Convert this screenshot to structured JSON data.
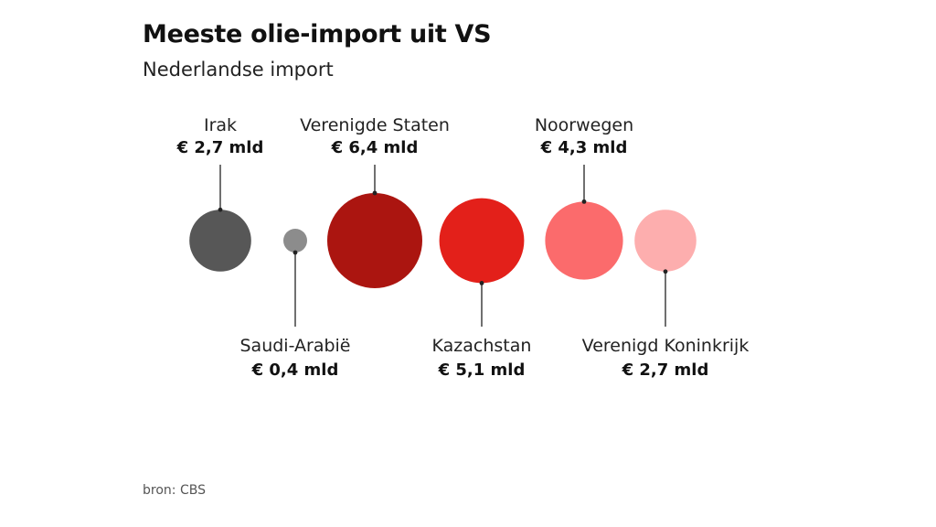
{
  "header": {
    "title": "Meeste olie-import uit VS",
    "subtitle": "Nederlandse import"
  },
  "footer": {
    "source": "bron: CBS"
  },
  "chart_data": {
    "type": "bubble",
    "unit": "mld",
    "currency": "€",
    "items": [
      {
        "name": "Irak",
        "value_label": "€ 2,7 mld",
        "value": 2.7,
        "color": "#575757",
        "label_position": "top"
      },
      {
        "name": "Saudi-Arabië",
        "value_label": "€ 0,4 mld",
        "value": 0.4,
        "color": "#8c8c8c",
        "label_position": "bottom"
      },
      {
        "name": "Verenigde Staten",
        "value_label": "€ 6,4 mld",
        "value": 6.4,
        "color": "#ab1510",
        "label_position": "top"
      },
      {
        "name": "Kazachstan",
        "value_label": "€ 5,1 mld",
        "value": 5.1,
        "color": "#e3201a",
        "label_position": "bottom"
      },
      {
        "name": "Noorwegen",
        "value_label": "€ 4,3 mld",
        "value": 4.3,
        "color": "#fb6b6c",
        "label_position": "top"
      },
      {
        "name": "Verenigd Koninkrijk",
        "value_label": "€ 2,7 mld",
        "value": 2.7,
        "color": "#fdaeae",
        "label_position": "bottom"
      }
    ]
  }
}
